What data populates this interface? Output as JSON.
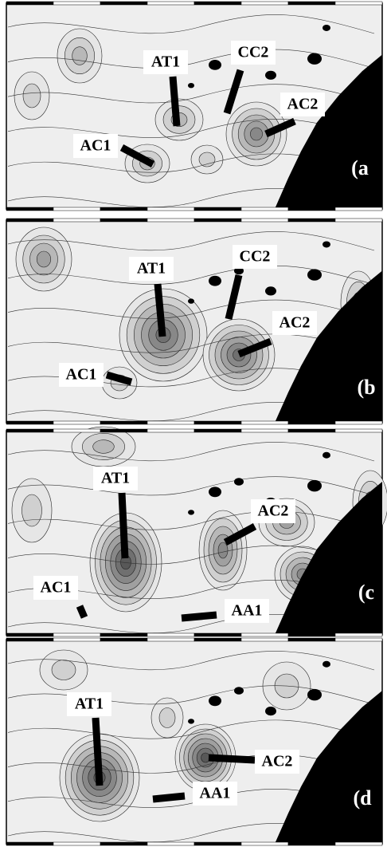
{
  "panels": [
    {
      "tag": "(a",
      "labels": [
        "AT1",
        "CC2",
        "AC2",
        "AC1"
      ]
    },
    {
      "tag": "(b",
      "labels": [
        "AT1",
        "CC2",
        "AC2",
        "AC1"
      ]
    },
    {
      "tag": "(c",
      "labels": [
        "AT1",
        "AC2",
        "AC1",
        "AA1"
      ]
    },
    {
      "tag": "(d",
      "labels": [
        "AT1",
        "AC2",
        "AA1"
      ]
    }
  ]
}
